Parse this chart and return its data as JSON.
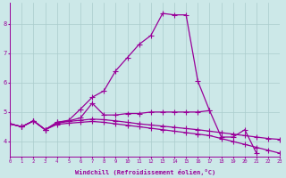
{
  "xlabel": "Windchill (Refroidissement éolien,°C)",
  "bg_color": "#cce8e8",
  "line_color": "#990099",
  "grid_color": "#aacccc",
  "xlim": [
    0,
    23
  ],
  "ylim": [
    3.5,
    8.7
  ],
  "xticks": [
    0,
    1,
    2,
    3,
    4,
    5,
    6,
    7,
    8,
    9,
    10,
    11,
    12,
    13,
    14,
    15,
    16,
    17,
    18,
    19,
    20,
    21,
    22,
    23
  ],
  "yticks": [
    4,
    5,
    6,
    7,
    8
  ],
  "lines": [
    {
      "x": [
        0,
        1,
        2,
        3,
        4,
        5,
        6,
        7,
        8,
        9,
        10,
        11,
        12,
        13,
        14,
        15,
        16,
        17,
        18,
        19,
        20,
        21,
        22,
        23
      ],
      "y": [
        4.6,
        4.5,
        4.7,
        4.4,
        4.62,
        4.68,
        4.72,
        4.76,
        4.74,
        4.7,
        4.65,
        4.6,
        4.56,
        4.52,
        4.48,
        4.44,
        4.4,
        4.35,
        4.3,
        4.25,
        4.2,
        4.15,
        4.1,
        4.07
      ]
    },
    {
      "x": [
        0,
        1,
        2,
        3,
        4,
        5,
        6,
        7,
        8,
        9,
        10,
        11,
        12,
        13,
        14,
        15,
        16,
        17,
        18,
        19,
        20,
        21,
        22,
        23
      ],
      "y": [
        4.6,
        4.5,
        4.7,
        4.4,
        4.58,
        4.62,
        4.65,
        4.68,
        4.65,
        4.6,
        4.55,
        4.5,
        4.45,
        4.4,
        4.35,
        4.3,
        4.25,
        4.2,
        4.1,
        4.0,
        3.9,
        3.8,
        3.7,
        3.6
      ]
    },
    {
      "x": [
        0,
        1,
        2,
        3,
        4,
        5,
        6,
        7,
        8,
        9,
        10,
        11,
        12,
        13,
        14,
        15,
        16,
        17
      ],
      "y": [
        4.6,
        4.5,
        4.7,
        4.4,
        4.65,
        4.7,
        4.8,
        5.3,
        4.9,
        4.9,
        4.95,
        4.95,
        5.0,
        5.0,
        5.0,
        5.0,
        5.0,
        5.05
      ]
    },
    {
      "x": [
        0,
        1,
        2,
        3,
        4,
        5,
        6,
        7,
        8,
        9,
        10,
        11,
        12,
        13,
        14,
        15,
        16,
        17,
        18,
        19,
        20,
        21
      ],
      "y": [
        4.6,
        4.5,
        4.7,
        4.4,
        4.65,
        4.72,
        5.1,
        5.5,
        5.72,
        6.4,
        6.85,
        7.3,
        7.6,
        8.35,
        8.3,
        8.3,
        6.05,
        5.05,
        4.15,
        4.15,
        4.4,
        3.6
      ]
    }
  ],
  "marker": "+",
  "markersize": 4,
  "linewidth": 0.9
}
